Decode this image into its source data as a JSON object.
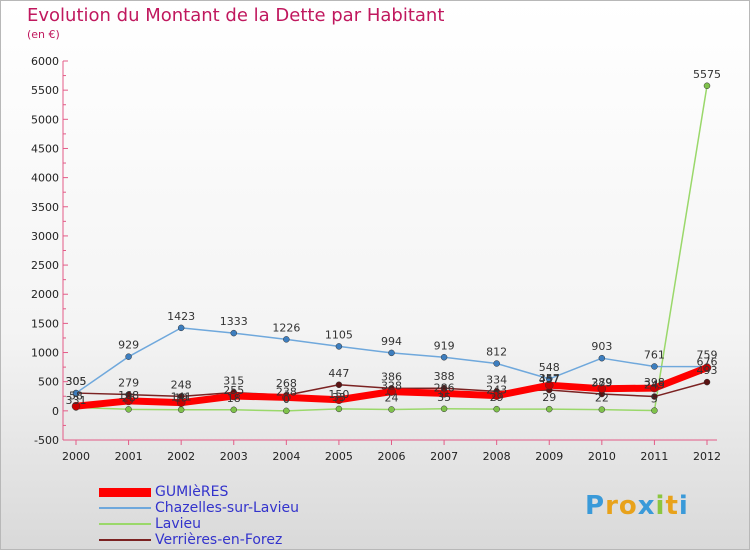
{
  "title": "Evolution du Montant de la Dette par Habitant",
  "subtitle": "(en €)",
  "logo": {
    "letters": [
      "P",
      "r",
      "o",
      "x",
      "i",
      "t",
      "i"
    ],
    "colors": [
      "#3a9ad9",
      "#e8a21b",
      "#e8a21b",
      "#3a9ad9",
      "#8cc63f",
      "#e8a21b",
      "#3a9ad9"
    ]
  },
  "chart_data": {
    "type": "line",
    "title": "Evolution du Montant de la Dette par Habitant",
    "subtitle": "(en €)",
    "xlabel": "",
    "ylabel": "",
    "x": [
      "2000",
      "2001",
      "2002",
      "2003",
      "2004",
      "2005",
      "2006",
      "2007",
      "2008",
      "2009",
      "2010",
      "2011",
      "2012"
    ],
    "ylim": [
      -500,
      6000
    ],
    "yticks": [
      -500,
      0,
      500,
      1000,
      1500,
      2000,
      2500,
      3000,
      3500,
      4000,
      4500,
      5000,
      5500,
      6000
    ],
    "grid": false,
    "legend": "bottom-left",
    "series": [
      {
        "name": "GUMIèRES",
        "color": "#ff0000",
        "width": 7,
        "marker": "#cc0000",
        "labels": false,
        "values": [
          80,
          170,
          140,
          255,
          230,
          190,
          330,
          300,
          260,
          440,
          380,
          390,
          740
        ]
      },
      {
        "name": "Chazelles-sur-Lavieu",
        "color": "#6fa8dc",
        "width": 1.5,
        "marker": "#3d7ebf",
        "labels": true,
        "values": [
          305,
          929,
          1423,
          1333,
          1226,
          1105,
          994,
          919,
          812,
          548,
          903,
          761,
          759
        ]
      },
      {
        "name": "Lavieu",
        "color": "#9ad86a",
        "width": 1.5,
        "marker": "#7fc24b",
        "labels": true,
        "values": [
          58,
          26,
          19,
          18,
          0,
          33,
          24,
          35,
          29,
          29,
          22,
          5,
          5575
        ]
      },
      {
        "name": "Verrières-en-Forez",
        "color": "#7b2222",
        "width": 1.5,
        "marker": "#5a1313",
        "labels": true,
        "values": [
          305,
          279,
          248,
          315,
          268,
          447,
          386,
          388,
          334,
          357,
          289,
          245,
          493
        ]
      }
    ],
    "extra_labels": [
      {
        "x": "2000",
        "text": "331"
      },
      {
        "x": "2001",
        "text": "168"
      },
      {
        "x": "2002",
        "text": "141"
      },
      {
        "x": "2003",
        "text": "255"
      },
      {
        "x": "2004",
        "text": "238"
      },
      {
        "x": "2005",
        "text": "150"
      },
      {
        "x": "2006",
        "text": "328"
      },
      {
        "x": "2007",
        "text": "286"
      },
      {
        "x": "2008",
        "text": "243"
      },
      {
        "x": "2009",
        "text": "457"
      },
      {
        "x": "2010",
        "text": "379"
      },
      {
        "x": "2011",
        "text": "398"
      },
      {
        "x": "2012",
        "text": "676"
      }
    ]
  }
}
